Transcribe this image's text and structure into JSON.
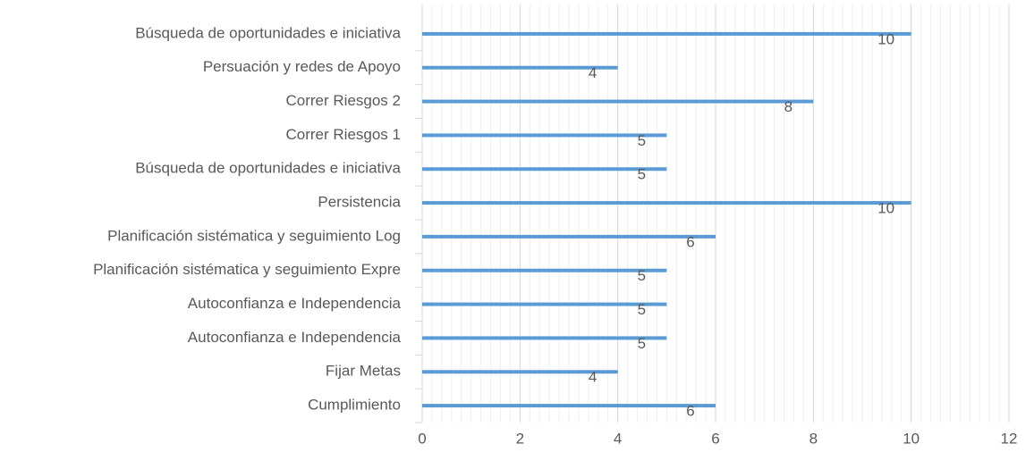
{
  "chart_data": {
    "type": "bar",
    "orientation": "horizontal",
    "categories": [
      "Búsqueda de oportunidades e iniciativa",
      "Persuación y redes de Apoyo",
      "Correr Riesgos 2",
      "Correr Riesgos 1",
      "Búsqueda de oportunidades e iniciativa",
      "Persistencia",
      "Planificación sistématica y seguimiento Log",
      "Planificación sistématica y seguimiento Expre",
      "Autoconfianza e Independencia",
      "Autoconfianza e Independencia",
      "Fijar Metas",
      "Cumplimiento"
    ],
    "values": [
      10,
      4,
      8,
      5,
      5,
      10,
      6,
      5,
      5,
      5,
      4,
      6
    ],
    "color": "#5b9bd5",
    "xlim": [
      0,
      12
    ],
    "xticks": [
      0,
      2,
      4,
      6,
      8,
      10,
      12
    ],
    "grid": true
  }
}
